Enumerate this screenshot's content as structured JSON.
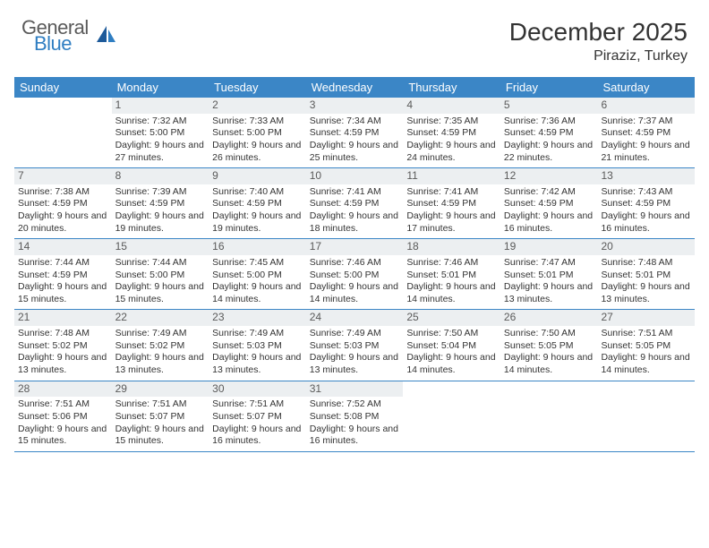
{
  "logo": {
    "text1": "General",
    "text2": "Blue"
  },
  "title": "December 2025",
  "location": "Piraziz, Turkey",
  "colors": {
    "header_bg": "#3b86c6",
    "daynum_bg": "#eceff1",
    "border": "#3b86c6",
    "logo_gray": "#5a5a5a",
    "logo_blue": "#2f7ec2"
  },
  "weekdays": [
    "Sunday",
    "Monday",
    "Tuesday",
    "Wednesday",
    "Thursday",
    "Friday",
    "Saturday"
  ],
  "weeks": [
    [
      null,
      {
        "n": "1",
        "sr": "7:32 AM",
        "ss": "5:00 PM",
        "dl": "9 hours and 27 minutes."
      },
      {
        "n": "2",
        "sr": "7:33 AM",
        "ss": "5:00 PM",
        "dl": "9 hours and 26 minutes."
      },
      {
        "n": "3",
        "sr": "7:34 AM",
        "ss": "4:59 PM",
        "dl": "9 hours and 25 minutes."
      },
      {
        "n": "4",
        "sr": "7:35 AM",
        "ss": "4:59 PM",
        "dl": "9 hours and 24 minutes."
      },
      {
        "n": "5",
        "sr": "7:36 AM",
        "ss": "4:59 PM",
        "dl": "9 hours and 22 minutes."
      },
      {
        "n": "6",
        "sr": "7:37 AM",
        "ss": "4:59 PM",
        "dl": "9 hours and 21 minutes."
      }
    ],
    [
      {
        "n": "7",
        "sr": "7:38 AM",
        "ss": "4:59 PM",
        "dl": "9 hours and 20 minutes."
      },
      {
        "n": "8",
        "sr": "7:39 AM",
        "ss": "4:59 PM",
        "dl": "9 hours and 19 minutes."
      },
      {
        "n": "9",
        "sr": "7:40 AM",
        "ss": "4:59 PM",
        "dl": "9 hours and 19 minutes."
      },
      {
        "n": "10",
        "sr": "7:41 AM",
        "ss": "4:59 PM",
        "dl": "9 hours and 18 minutes."
      },
      {
        "n": "11",
        "sr": "7:41 AM",
        "ss": "4:59 PM",
        "dl": "9 hours and 17 minutes."
      },
      {
        "n": "12",
        "sr": "7:42 AM",
        "ss": "4:59 PM",
        "dl": "9 hours and 16 minutes."
      },
      {
        "n": "13",
        "sr": "7:43 AM",
        "ss": "4:59 PM",
        "dl": "9 hours and 16 minutes."
      }
    ],
    [
      {
        "n": "14",
        "sr": "7:44 AM",
        "ss": "4:59 PM",
        "dl": "9 hours and 15 minutes."
      },
      {
        "n": "15",
        "sr": "7:44 AM",
        "ss": "5:00 PM",
        "dl": "9 hours and 15 minutes."
      },
      {
        "n": "16",
        "sr": "7:45 AM",
        "ss": "5:00 PM",
        "dl": "9 hours and 14 minutes."
      },
      {
        "n": "17",
        "sr": "7:46 AM",
        "ss": "5:00 PM",
        "dl": "9 hours and 14 minutes."
      },
      {
        "n": "18",
        "sr": "7:46 AM",
        "ss": "5:01 PM",
        "dl": "9 hours and 14 minutes."
      },
      {
        "n": "19",
        "sr": "7:47 AM",
        "ss": "5:01 PM",
        "dl": "9 hours and 13 minutes."
      },
      {
        "n": "20",
        "sr": "7:48 AM",
        "ss": "5:01 PM",
        "dl": "9 hours and 13 minutes."
      }
    ],
    [
      {
        "n": "21",
        "sr": "7:48 AM",
        "ss": "5:02 PM",
        "dl": "9 hours and 13 minutes."
      },
      {
        "n": "22",
        "sr": "7:49 AM",
        "ss": "5:02 PM",
        "dl": "9 hours and 13 minutes."
      },
      {
        "n": "23",
        "sr": "7:49 AM",
        "ss": "5:03 PM",
        "dl": "9 hours and 13 minutes."
      },
      {
        "n": "24",
        "sr": "7:49 AM",
        "ss": "5:03 PM",
        "dl": "9 hours and 13 minutes."
      },
      {
        "n": "25",
        "sr": "7:50 AM",
        "ss": "5:04 PM",
        "dl": "9 hours and 14 minutes."
      },
      {
        "n": "26",
        "sr": "7:50 AM",
        "ss": "5:05 PM",
        "dl": "9 hours and 14 minutes."
      },
      {
        "n": "27",
        "sr": "7:51 AM",
        "ss": "5:05 PM",
        "dl": "9 hours and 14 minutes."
      }
    ],
    [
      {
        "n": "28",
        "sr": "7:51 AM",
        "ss": "5:06 PM",
        "dl": "9 hours and 15 minutes."
      },
      {
        "n": "29",
        "sr": "7:51 AM",
        "ss": "5:07 PM",
        "dl": "9 hours and 15 minutes."
      },
      {
        "n": "30",
        "sr": "7:51 AM",
        "ss": "5:07 PM",
        "dl": "9 hours and 16 minutes."
      },
      {
        "n": "31",
        "sr": "7:52 AM",
        "ss": "5:08 PM",
        "dl": "9 hours and 16 minutes."
      },
      null,
      null,
      null
    ]
  ],
  "labels": {
    "sunrise": "Sunrise:",
    "sunset": "Sunset:",
    "daylight": "Daylight:"
  }
}
